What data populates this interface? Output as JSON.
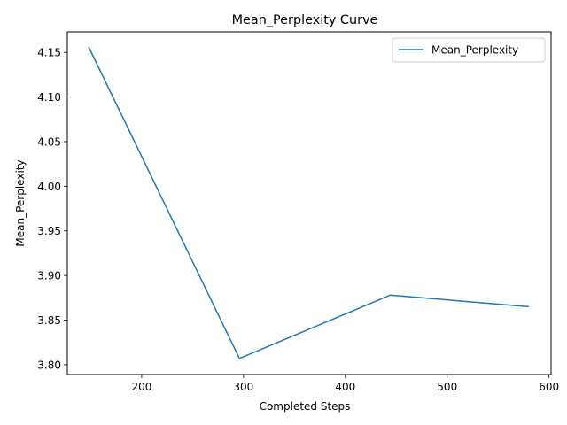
{
  "chart_data": {
    "type": "line",
    "title": "Mean_Perplexity Curve",
    "xlabel": "Completed Steps",
    "ylabel": "Mean_Perplexity",
    "xlim": [
      127,
      602
    ],
    "ylim": [
      3.789,
      4.173
    ],
    "xticks": [
      200,
      300,
      400,
      500,
      600
    ],
    "yticks": [
      3.8,
      3.85,
      3.9,
      3.95,
      4.0,
      4.05,
      4.1,
      4.15
    ],
    "xtick_labels": [
      "200",
      "300",
      "400",
      "500",
      "600"
    ],
    "ytick_labels": [
      "3.80",
      "3.85",
      "3.90",
      "3.95",
      "4.00",
      "4.05",
      "4.10",
      "4.15"
    ],
    "grid": false,
    "legend_position": "top-right",
    "series": [
      {
        "name": "Mean_Perplexity",
        "color": "#1f77b4",
        "x": [
          148,
          296,
          444,
          580
        ],
        "y": [
          4.156,
          3.807,
          3.878,
          3.865
        ]
      }
    ]
  }
}
